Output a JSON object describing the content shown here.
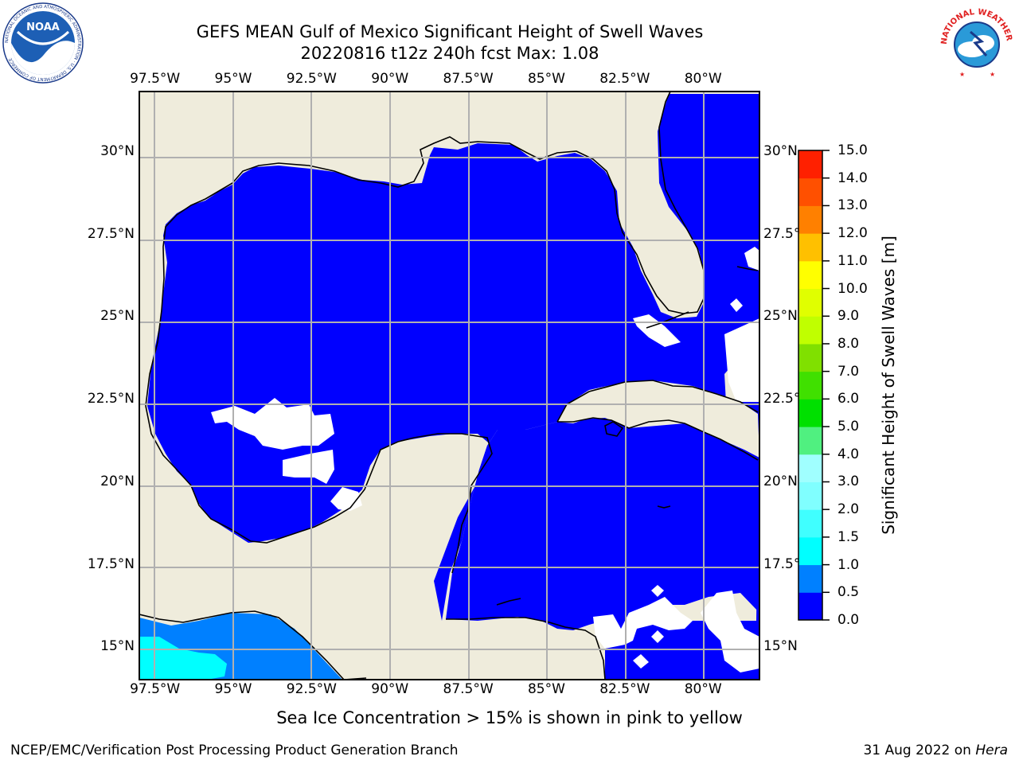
{
  "title": {
    "line1": "GEFS MEAN Gulf of Mexico Significant Height of Swell Waves",
    "line2": "20220816 t12z 240h fcst   Max: 1.08"
  },
  "map": {
    "lon_ticks_top": [
      "97.5°W",
      "95°W",
      "92.5°W",
      "90°W",
      "87.5°W",
      "85°W",
      "82.5°W",
      "80°W"
    ],
    "lon_ticks_bottom": [
      "97.5°W",
      "95°W",
      "92.5°W",
      "90°W",
      "87.5°W",
      "85°W",
      "82.5°W",
      "80°W"
    ],
    "lat_ticks_left": [
      "30°N",
      "27.5°N",
      "25°N",
      "22.5°N",
      "20°N",
      "17.5°N",
      "15°N"
    ],
    "lat_ticks_right": [
      "30°N",
      "27.5°N",
      "25°N",
      "22.5°N",
      "20°N",
      "17.5°N",
      "15°N"
    ],
    "lon_values": [
      -97.5,
      -95,
      -92.5,
      -90,
      -87.5,
      -85,
      -82.5,
      -80
    ],
    "lat_values": [
      30,
      27.5,
      25,
      22.5,
      20,
      17.5,
      15
    ],
    "extent": {
      "lon_min": -98,
      "lon_max": -78.2,
      "lat_min": 14,
      "lat_max": 31.8
    },
    "grid": true,
    "field_max": 1.08
  },
  "colorbar": {
    "label": "Significant Height of Swell Waves [m]",
    "ticks": [
      "0.0",
      "0.5",
      "1.0",
      "1.5",
      "2.0",
      "3.0",
      "4.0",
      "5.0",
      "6.0",
      "7.0",
      "8.0",
      "9.0",
      "10.0",
      "11.0",
      "12.0",
      "13.0",
      "14.0",
      "15.0"
    ],
    "colors": [
      "#0000ff",
      "#0080ff",
      "#00ffff",
      "#40ffff",
      "#80ffff",
      "#a0ffff",
      "#50f080",
      "#00e000",
      "#40e000",
      "#80e000",
      "#c0ff00",
      "#e0ff00",
      "#ffff00",
      "#ffc000",
      "#ff8000",
      "#ff5000",
      "#ff2000"
    ]
  },
  "colors": {
    "land": "#efecdc",
    "ocean_low": "#0000ff",
    "ocean_05": "#0080ff",
    "ocean_1": "#00ffff",
    "grid": "#b0b0b0"
  },
  "note": "Sea Ice Concentration > 15% is shown in pink to yellow",
  "footer": {
    "left": "NCEP/EMC/Verification Post Processing Product Generation Branch",
    "date": "31 Aug 2022 on ",
    "host": "Hera"
  },
  "logos": {
    "noaa": {
      "text": "NOAA",
      "ring_text": "NATIONAL OCEANIC AND ATMOSPHERIC ADMINISTRATION · U.S. DEPARTMENT OF COMMERCE"
    },
    "nws": {
      "ring_text": "NATIONAL WEATHER SERVICE"
    }
  }
}
